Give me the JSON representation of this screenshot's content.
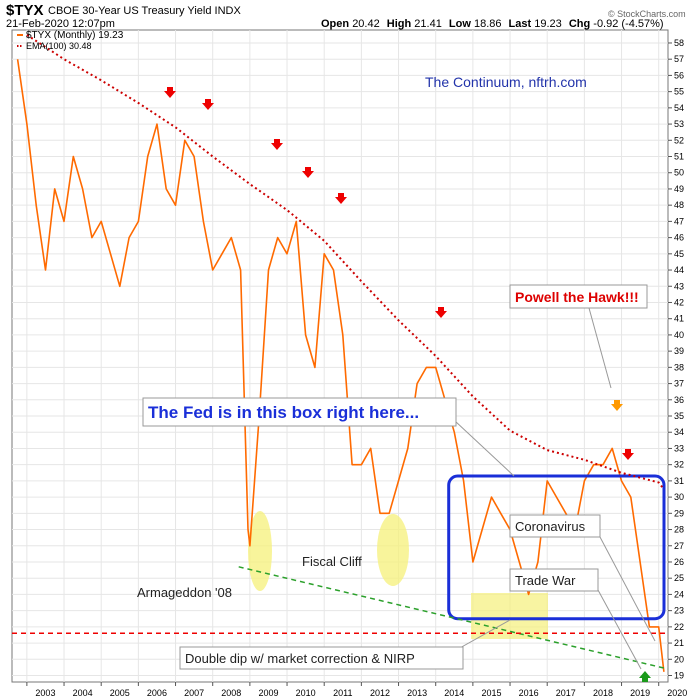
{
  "header": {
    "symbol": "$TYX",
    "name": "CBOE 30-Year US Treasury Yield",
    "exchange": "INDX",
    "date": "21-Feb-2020 12:07pm",
    "open_label": "Open",
    "open": "20.42",
    "high_label": "High",
    "high": "21.41",
    "low_label": "Low",
    "low": "18.86",
    "last_label": "Last",
    "last": "19.23",
    "chg_label": "Chg",
    "chg": "-0.92 (-4.57%)",
    "watermark": "© StockCharts.com"
  },
  "legend": {
    "series": "$TYX (Monthly) 19.23",
    "ema": "EMA(100) 30.48"
  },
  "annotations": {
    "continuum": "The Continuum, nftrh.com",
    "powell": "Powell the Hawk!!!",
    "fed_box": "The Fed is in this box right here...",
    "coronavirus": "Coronavirus",
    "trade_war": "Trade War",
    "fiscal_cliff": "Fiscal Cliff",
    "armageddon": "Armageddon '08",
    "double_dip": "Double dip w/ market correction & NIRP"
  },
  "chart_data": {
    "type": "line",
    "title": "$TYX CBOE 30-Year US Treasury Yield INDX",
    "x_ticks": [
      "2003",
      "2004",
      "2005",
      "2006",
      "2007",
      "2008",
      "2009",
      "2010",
      "2011",
      "2012",
      "2013",
      "2014",
      "2015",
      "2016",
      "2017",
      "2018",
      "2019",
      "2020"
    ],
    "ylim": [
      18.6,
      58.8
    ],
    "y_ticks": [
      19,
      20,
      21,
      22,
      23,
      24,
      25,
      26,
      27,
      28,
      29,
      30,
      31,
      32,
      33,
      34,
      35,
      36,
      37,
      38,
      39,
      40,
      41,
      42,
      43,
      44,
      45,
      46,
      47,
      48,
      49,
      50,
      51,
      52,
      53,
      54,
      55,
      56,
      57,
      58
    ],
    "grid": true,
    "series": [
      {
        "name": "$TYX (Monthly) 19.23",
        "color": "#ff6a00",
        "x": [
          2002.75,
          2003.0,
          2003.25,
          2003.5,
          2003.75,
          2004.0,
          2004.25,
          2004.5,
          2004.75,
          2005.0,
          2005.25,
          2005.5,
          2005.75,
          2006.0,
          2006.25,
          2006.5,
          2006.75,
          2007.0,
          2007.25,
          2007.5,
          2007.75,
          2008.0,
          2008.25,
          2008.5,
          2008.75,
          2008.95,
          2009.0,
          2009.25,
          2009.5,
          2009.75,
          2010.0,
          2010.25,
          2010.5,
          2010.75,
          2011.0,
          2011.25,
          2011.5,
          2011.75,
          2012.0,
          2012.25,
          2012.5,
          2012.75,
          2013.0,
          2013.25,
          2013.5,
          2013.75,
          2014.0,
          2014.25,
          2014.5,
          2014.75,
          2015.0,
          2015.25,
          2015.5,
          2015.75,
          2016.0,
          2016.25,
          2016.5,
          2016.75,
          2017.0,
          2017.25,
          2017.5,
          2017.75,
          2018.0,
          2018.25,
          2018.5,
          2018.75,
          2019.0,
          2019.25,
          2019.5,
          2019.75,
          2020.0,
          2020.14
        ],
        "values": [
          57,
          53,
          48,
          44,
          49,
          47,
          51,
          49,
          46,
          47,
          45,
          43,
          46,
          47,
          51,
          53,
          49,
          48,
          52,
          51,
          47,
          44,
          45,
          46,
          44,
          28,
          27,
          35,
          44,
          46,
          45,
          47,
          40,
          38,
          45,
          44,
          40,
          32,
          32,
          33,
          29,
          29,
          31,
          33,
          37,
          38,
          38,
          36,
          34,
          31,
          26,
          28,
          30,
          29,
          28,
          26,
          24,
          26,
          31,
          30,
          29,
          28,
          31,
          32,
          32,
          33,
          31,
          30,
          26,
          22,
          22,
          19.23
        ]
      },
      {
        "name": "EMA(100) 30.48",
        "color": "#cc0000",
        "style": "dotted",
        "x": [
          2003.0,
          2004.0,
          2005.0,
          2006.0,
          2007.0,
          2008.0,
          2009.0,
          2010.0,
          2011.0,
          2012.0,
          2013.0,
          2014.0,
          2015.0,
          2016.0,
          2017.0,
          2018.0,
          2019.0,
          2020.0,
          2020.14
        ],
        "values": [
          58.5,
          57.0,
          55.7,
          54.3,
          52.8,
          51.0,
          49.3,
          47.7,
          45.8,
          43.3,
          40.9,
          38.7,
          36.2,
          34.1,
          32.9,
          32.3,
          31.5,
          30.9,
          30.48
        ]
      },
      {
        "name": "",
        "color": "#2ba02b",
        "style": "dashed",
        "x": [
          2008.7,
          2020.25
        ],
        "values": [
          25.7,
          19.4
        ]
      },
      {
        "name": "",
        "color": "#ee0000",
        "style": "dashed",
        "x": [
          2002.6,
          2020.25
        ],
        "values": [
          21.6,
          21.6
        ]
      }
    ],
    "box": {
      "x": [
        2014.35,
        2020.25
      ],
      "y": [
        22.5,
        31.3
      ]
    }
  }
}
